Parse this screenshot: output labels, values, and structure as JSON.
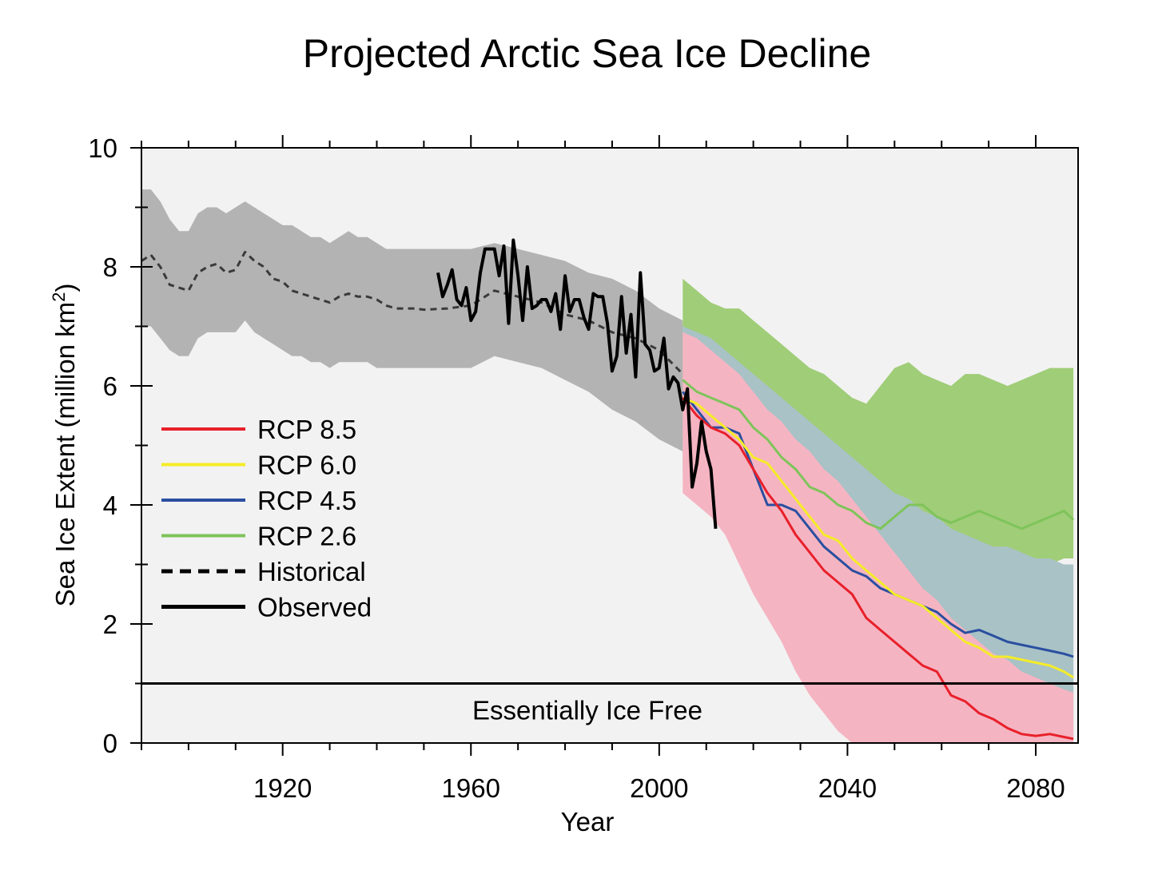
{
  "chart_data": {
    "type": "line",
    "title": "Projected Arctic Sea Ice Decline",
    "xlabel": "Year",
    "ylabel": "Sea Ice Extent (million km²)",
    "xlim": [
      1890,
      2089
    ],
    "ylim": [
      0,
      10
    ],
    "x_ticks": [
      1920,
      1960,
      2000,
      2040,
      2080
    ],
    "y_ticks": [
      0,
      2,
      4,
      6,
      8,
      10
    ],
    "threshold": {
      "value": 1,
      "label": "Essentially Ice Free"
    },
    "legend_position": "left",
    "legend": [
      {
        "label": "RCP 8.5",
        "color": "#e8202a",
        "style": "solid"
      },
      {
        "label": "RCP 6.0",
        "color": "#f5ec28",
        "style": "solid"
      },
      {
        "label": "RCP 4.5",
        "color": "#2a4fa0",
        "style": "solid"
      },
      {
        "label": "RCP 2.6",
        "color": "#7ec45a",
        "style": "solid"
      },
      {
        "label": "Historical",
        "color": "#000000",
        "style": "dashed"
      },
      {
        "label": "Observed",
        "color": "#000000",
        "style": "solid"
      }
    ],
    "colors": {
      "plot_background": "#f2f2f2",
      "historical_band": "#b3b3b3",
      "historical_line": "#3a3a3a",
      "observed": "#000000",
      "rcp85": "#e8202a",
      "rcp85_band": "#f5b4c2",
      "rcp60": "#f5ec28",
      "rcp45": "#2a4fa0",
      "rcp45_band": "#a9c2c6",
      "rcp26": "#7ec45a",
      "rcp26_band": "#a0cd78"
    },
    "series": [
      {
        "name": "Historical",
        "kind": "dashed",
        "x": [
          1890,
          1892,
          1894,
          1896,
          1898,
          1900,
          1902,
          1904,
          1906,
          1908,
          1910,
          1912,
          1914,
          1916,
          1918,
          1920,
          1922,
          1924,
          1926,
          1928,
          1930,
          1932,
          1934,
          1936,
          1938,
          1940,
          1942,
          1944,
          1946,
          1948,
          1950,
          1955,
          1960,
          1965,
          1970,
          1975,
          1980,
          1985,
          1990,
          1995,
          2000,
          2005
        ],
        "y": [
          8.1,
          8.2,
          8.0,
          7.7,
          7.65,
          7.6,
          7.9,
          8.0,
          8.05,
          7.9,
          7.95,
          8.25,
          8.1,
          8.0,
          7.8,
          7.75,
          7.6,
          7.55,
          7.5,
          7.45,
          7.4,
          7.5,
          7.55,
          7.5,
          7.5,
          7.45,
          7.35,
          7.3,
          7.3,
          7.3,
          7.28,
          7.3,
          7.35,
          7.6,
          7.5,
          7.4,
          7.2,
          7.1,
          6.9,
          6.8,
          6.6,
          6.2
        ],
        "band_upper": [
          9.3,
          9.3,
          9.1,
          8.8,
          8.6,
          8.6,
          8.9,
          9.0,
          9.0,
          8.9,
          9.0,
          9.1,
          9.0,
          8.9,
          8.8,
          8.7,
          8.7,
          8.6,
          8.5,
          8.5,
          8.4,
          8.5,
          8.6,
          8.5,
          8.5,
          8.4,
          8.3,
          8.3,
          8.3,
          8.3,
          8.3,
          8.3,
          8.3,
          8.4,
          8.3,
          8.2,
          8.1,
          7.9,
          7.8,
          7.6,
          7.3,
          7.1
        ],
        "band_lower": [
          7.0,
          7.0,
          6.8,
          6.6,
          6.5,
          6.5,
          6.8,
          6.9,
          6.9,
          6.9,
          6.9,
          7.1,
          6.9,
          6.8,
          6.7,
          6.6,
          6.5,
          6.5,
          6.4,
          6.4,
          6.3,
          6.4,
          6.4,
          6.4,
          6.4,
          6.3,
          6.3,
          6.3,
          6.3,
          6.3,
          6.3,
          6.3,
          6.3,
          6.5,
          6.4,
          6.3,
          6.1,
          5.9,
          5.6,
          5.4,
          5.1,
          4.9
        ]
      },
      {
        "name": "Observed",
        "kind": "solid",
        "x": [
          1953,
          1954,
          1955,
          1956,
          1957,
          1958,
          1959,
          1960,
          1961,
          1962,
          1963,
          1964,
          1965,
          1966,
          1967,
          1968,
          1969,
          1970,
          1971,
          1972,
          1973,
          1974,
          1975,
          1976,
          1977,
          1978,
          1979,
          1980,
          1981,
          1982,
          1983,
          1984,
          1985,
          1986,
          1987,
          1988,
          1989,
          1990,
          1991,
          1992,
          1993,
          1994,
          1995,
          1996,
          1997,
          1998,
          1999,
          2000,
          2001,
          2002,
          2003,
          2004,
          2005,
          2006,
          2007,
          2008,
          2009,
          2010,
          2011,
          2012
        ],
        "y": [
          7.9,
          7.5,
          7.7,
          7.95,
          7.45,
          7.35,
          7.65,
          7.1,
          7.25,
          7.9,
          8.3,
          8.3,
          8.3,
          7.85,
          8.35,
          7.05,
          8.45,
          7.85,
          7.1,
          8.0,
          7.3,
          7.35,
          7.45,
          7.45,
          7.25,
          7.55,
          6.95,
          7.85,
          7.25,
          7.45,
          7.45,
          7.15,
          6.95,
          7.55,
          7.5,
          7.5,
          7.05,
          6.25,
          6.5,
          7.5,
          6.55,
          7.2,
          6.15,
          7.9,
          6.7,
          6.6,
          6.25,
          6.3,
          6.8,
          5.95,
          6.15,
          6.05,
          5.6,
          5.95,
          4.3,
          4.7,
          5.4,
          4.9,
          4.6,
          3.6
        ]
      },
      {
        "name": "RCP 8.5",
        "kind": "solid",
        "x": [
          2005,
          2008,
          2011,
          2014,
          2017,
          2020,
          2023,
          2026,
          2029,
          2032,
          2035,
          2038,
          2041,
          2044,
          2047,
          2050,
          2053,
          2056,
          2059,
          2062,
          2065,
          2068,
          2071,
          2074,
          2077,
          2080,
          2083,
          2086,
          2088
        ],
        "y": [
          5.8,
          5.5,
          5.3,
          5.2,
          5.0,
          4.6,
          4.2,
          3.9,
          3.5,
          3.2,
          2.9,
          2.7,
          2.5,
          2.1,
          1.9,
          1.7,
          1.5,
          1.3,
          1.2,
          0.8,
          0.7,
          0.5,
          0.4,
          0.25,
          0.15,
          0.12,
          0.15,
          0.1,
          0.07
        ],
        "band_upper": [
          6.9,
          6.8,
          6.6,
          6.4,
          6.2,
          5.9,
          5.6,
          5.4,
          5.1,
          4.9,
          4.6,
          4.4,
          4.1,
          3.8,
          3.5,
          3.2,
          2.9,
          2.6,
          2.4,
          2.1,
          1.9,
          1.7,
          1.5,
          1.4,
          1.2,
          1.1,
          1.0,
          0.9,
          0.85
        ],
        "band_lower": [
          4.2,
          4.0,
          3.8,
          3.5,
          3.0,
          2.5,
          2.1,
          1.7,
          1.2,
          0.8,
          0.5,
          0.2,
          0,
          0,
          0,
          0,
          0,
          0,
          0,
          0,
          0,
          0,
          0,
          0,
          0,
          0,
          0,
          0,
          0
        ]
      },
      {
        "name": "RCP 6.0",
        "kind": "solid",
        "x": [
          2005,
          2008,
          2011,
          2014,
          2017,
          2020,
          2023,
          2026,
          2029,
          2032,
          2035,
          2038,
          2041,
          2044,
          2047,
          2050,
          2053,
          2056,
          2059,
          2062,
          2065,
          2068,
          2071,
          2074,
          2077,
          2080,
          2083,
          2086,
          2088
        ],
        "y": [
          5.8,
          5.7,
          5.5,
          5.3,
          5.1,
          4.8,
          4.7,
          4.4,
          4.1,
          3.8,
          3.5,
          3.4,
          3.1,
          2.9,
          2.7,
          2.5,
          2.4,
          2.3,
          2.1,
          1.9,
          1.7,
          1.6,
          1.45,
          1.45,
          1.4,
          1.35,
          1.3,
          1.2,
          1.1
        ],
        "band_upper": [
          7.0,
          6.9,
          6.7,
          6.6,
          6.4,
          6.1,
          5.9,
          5.6,
          5.3,
          5.0,
          4.8,
          4.6,
          4.4,
          4.2,
          4.0,
          3.8,
          3.6,
          3.4,
          3.2,
          3.1,
          3.0,
          3.0,
          2.9,
          2.9,
          2.9,
          2.8,
          2.8,
          2.7,
          2.7
        ],
        "band_lower": [
          4.5,
          4.4,
          4.2,
          3.9,
          3.6,
          3.3,
          3.0,
          2.7,
          2.3,
          1.9,
          1.5,
          1.2,
          0.9,
          0.6,
          0.4,
          0.3,
          0.2,
          0.15,
          0.1,
          0.1,
          0.1,
          0.1,
          0.05,
          0.05,
          0.05,
          0.05,
          0.05,
          0.05,
          0.05
        ]
      },
      {
        "name": "RCP 4.5",
        "kind": "solid",
        "x": [
          2005,
          2008,
          2011,
          2014,
          2017,
          2020,
          2023,
          2026,
          2029,
          2032,
          2035,
          2038,
          2041,
          2044,
          2047,
          2050,
          2053,
          2056,
          2059,
          2062,
          2065,
          2068,
          2071,
          2074,
          2077,
          2080,
          2083,
          2086,
          2088
        ],
        "y": [
          5.9,
          5.6,
          5.3,
          5.3,
          5.2,
          4.6,
          4.0,
          4.0,
          3.9,
          3.6,
          3.3,
          3.1,
          2.9,
          2.8,
          2.6,
          2.5,
          2.4,
          2.3,
          2.2,
          2.0,
          1.85,
          1.9,
          1.8,
          1.7,
          1.65,
          1.6,
          1.55,
          1.5,
          1.45
        ],
        "band_upper": [
          7.0,
          6.9,
          6.8,
          6.6,
          6.4,
          6.2,
          6.0,
          5.8,
          5.6,
          5.4,
          5.2,
          5.0,
          4.8,
          4.6,
          4.4,
          4.2,
          4.1,
          3.9,
          3.8,
          3.6,
          3.5,
          3.4,
          3.3,
          3.3,
          3.2,
          3.1,
          3.1,
          3.0,
          3.0
        ],
        "band_lower": [
          4.6,
          4.4,
          4.1,
          3.8,
          3.4,
          3.0,
          2.5,
          2.0,
          1.4,
          1.0,
          0.8,
          0.6,
          0.4,
          0.3,
          0.3,
          0.3,
          0.3,
          0.3,
          0.3,
          0.3,
          0.3,
          0.3,
          0.3,
          0.3,
          0.3,
          0.3,
          0.3,
          0.3,
          0.3
        ]
      },
      {
        "name": "RCP 2.6",
        "kind": "solid",
        "x": [
          2005,
          2008,
          2011,
          2014,
          2017,
          2020,
          2023,
          2026,
          2029,
          2032,
          2035,
          2038,
          2041,
          2044,
          2047,
          2050,
          2053,
          2056,
          2059,
          2062,
          2065,
          2068,
          2071,
          2074,
          2077,
          2080,
          2083,
          2086,
          2088
        ],
        "y": [
          6.1,
          5.9,
          5.8,
          5.7,
          5.6,
          5.3,
          5.1,
          4.8,
          4.6,
          4.3,
          4.2,
          4.0,
          3.9,
          3.7,
          3.6,
          3.8,
          4.0,
          4.0,
          3.8,
          3.7,
          3.8,
          3.9,
          3.8,
          3.7,
          3.6,
          3.7,
          3.8,
          3.9,
          3.75
        ],
        "band_upper": [
          7.8,
          7.6,
          7.4,
          7.3,
          7.3,
          7.1,
          6.9,
          6.7,
          6.5,
          6.3,
          6.2,
          6.0,
          5.8,
          5.7,
          6.0,
          6.3,
          6.4,
          6.2,
          6.1,
          6.0,
          6.2,
          6.2,
          6.1,
          6.0,
          6.1,
          6.2,
          6.3,
          6.3,
          6.3
        ],
        "band_lower": [
          5.1,
          5.0,
          4.9,
          4.8,
          4.6,
          4.4,
          4.2,
          4.0,
          3.8,
          3.6,
          3.4,
          3.2,
          3.0,
          2.9,
          2.8,
          2.9,
          3.0,
          3.1,
          3.0,
          3.0,
          3.0,
          3.1,
          3.0,
          3.0,
          3.0,
          3.0,
          3.0,
          3.1,
          3.1
        ]
      }
    ]
  }
}
